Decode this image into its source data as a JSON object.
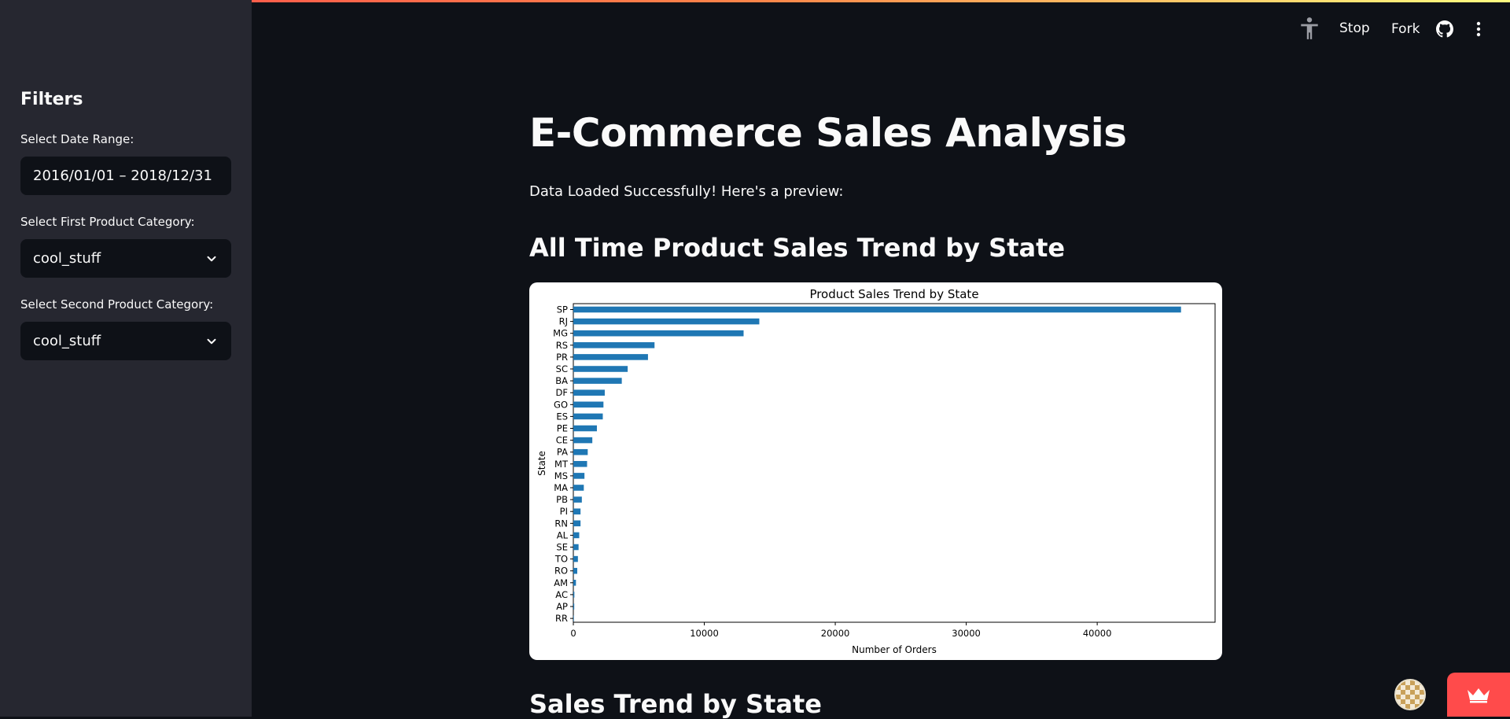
{
  "sidebar": {
    "title": "Filters",
    "date_label": "Select Date Range:",
    "date_value": "2016/01/01 – 2018/12/31",
    "first_category_label": "Select First Product Category:",
    "first_category_value": "cool_stuff",
    "second_category_label": "Select Second Product Category:",
    "second_category_value": "cool_stuff"
  },
  "header": {
    "stop_label": "Stop",
    "fork_label": "Fork",
    "icons": [
      "accessibility-icon",
      "github-icon",
      "more-vertical-icon"
    ]
  },
  "main": {
    "title": "E-Commerce Sales Analysis",
    "status_text": "Data Loaded Successfully! Here's a preview:",
    "section1_heading": "All Time Product Sales Trend by State",
    "section2_heading": "Sales Trend by State"
  },
  "colors": {
    "bar": "#1f77b4",
    "accent": "#ff4b4b",
    "sidebar_bg": "#262730",
    "main_bg": "#0e1117"
  },
  "chart_data": {
    "type": "bar",
    "orientation": "horizontal",
    "title": "Product Sales Trend by State",
    "xlabel": "Number of Orders",
    "ylabel": "State",
    "categories": [
      "SP",
      "RJ",
      "MG",
      "RS",
      "PR",
      "SC",
      "BA",
      "DF",
      "GO",
      "ES",
      "PE",
      "CE",
      "PA",
      "MT",
      "MS",
      "MA",
      "PB",
      "PI",
      "RN",
      "AL",
      "SE",
      "TO",
      "RO",
      "AM",
      "AC",
      "AP",
      "RR"
    ],
    "values": [
      46400,
      14200,
      13000,
      6200,
      5700,
      4150,
      3700,
      2400,
      2300,
      2250,
      1800,
      1450,
      1100,
      1050,
      850,
      800,
      650,
      550,
      550,
      450,
      400,
      350,
      300,
      200,
      80,
      70,
      40
    ],
    "xlim": [
      0,
      49000
    ],
    "xticks": [
      0,
      10000,
      20000,
      30000,
      40000
    ],
    "grid": false,
    "legend": "none"
  }
}
